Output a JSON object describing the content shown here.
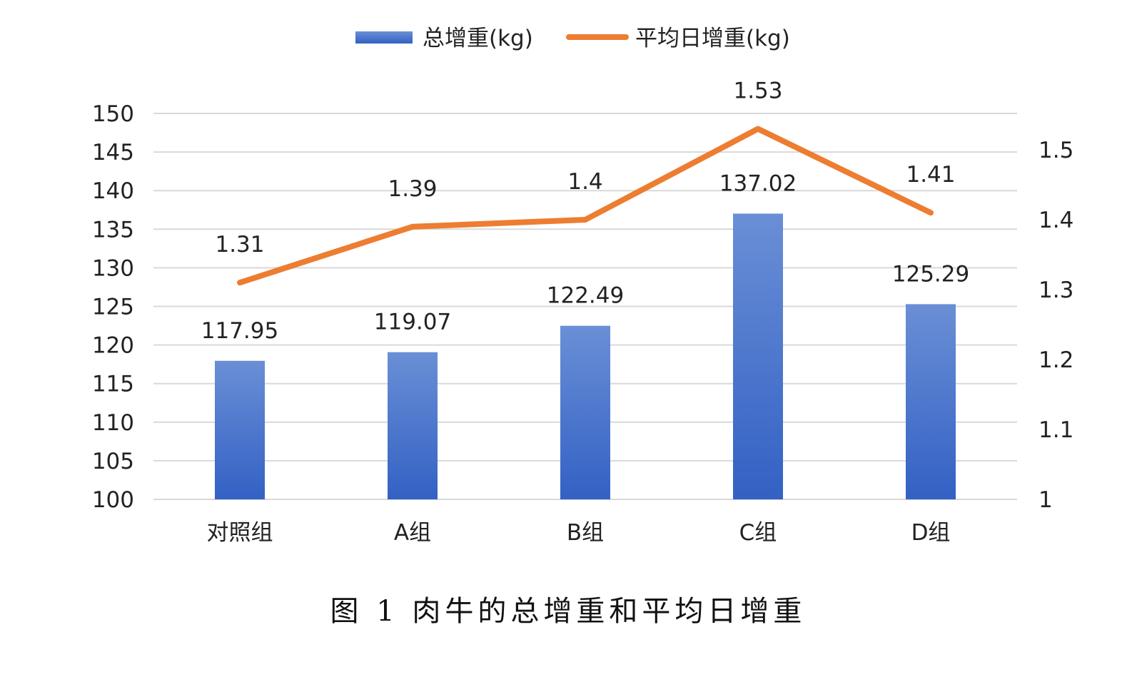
{
  "caption": "图 1  肉牛的总增重和平均日增重",
  "legend": {
    "bar_label": "总增重(kg)",
    "line_label": "平均日增重(kg)"
  },
  "colors": {
    "bar_top": "#6a8fd6",
    "bar_bottom": "#3361c4",
    "line": "#ed7d31",
    "grid": "#d9d9d9"
  },
  "chart_data": {
    "type": "bar+line",
    "categories": [
      "对照组",
      "A组",
      "B组",
      "C组",
      "D组"
    ],
    "series": [
      {
        "name": "总增重(kg)",
        "type": "bar",
        "axis": "left",
        "values": [
          117.95,
          119.07,
          122.49,
          137.02,
          125.29
        ],
        "labels": [
          "117.95",
          "119.07",
          "122.49",
          "137.02",
          "125.29"
        ]
      },
      {
        "name": "平均日增重(kg)",
        "type": "line",
        "axis": "right",
        "values": [
          1.31,
          1.39,
          1.4,
          1.53,
          1.41
        ],
        "labels": [
          "1.31",
          "1.39",
          "1.4",
          "1.53",
          "1.41"
        ]
      }
    ],
    "y_left": {
      "min": 100,
      "max": 150,
      "step": 5,
      "ticks": [
        "100",
        "105",
        "110",
        "115",
        "120",
        "125",
        "130",
        "135",
        "140",
        "145",
        "150"
      ]
    },
    "y_right": {
      "min": 1,
      "max": 1.55,
      "step": 0.1,
      "ticks": [
        "1",
        "1.1",
        "1.2",
        "1.3",
        "1.4",
        "1.5"
      ]
    },
    "grid": true,
    "legend_position": "top"
  }
}
